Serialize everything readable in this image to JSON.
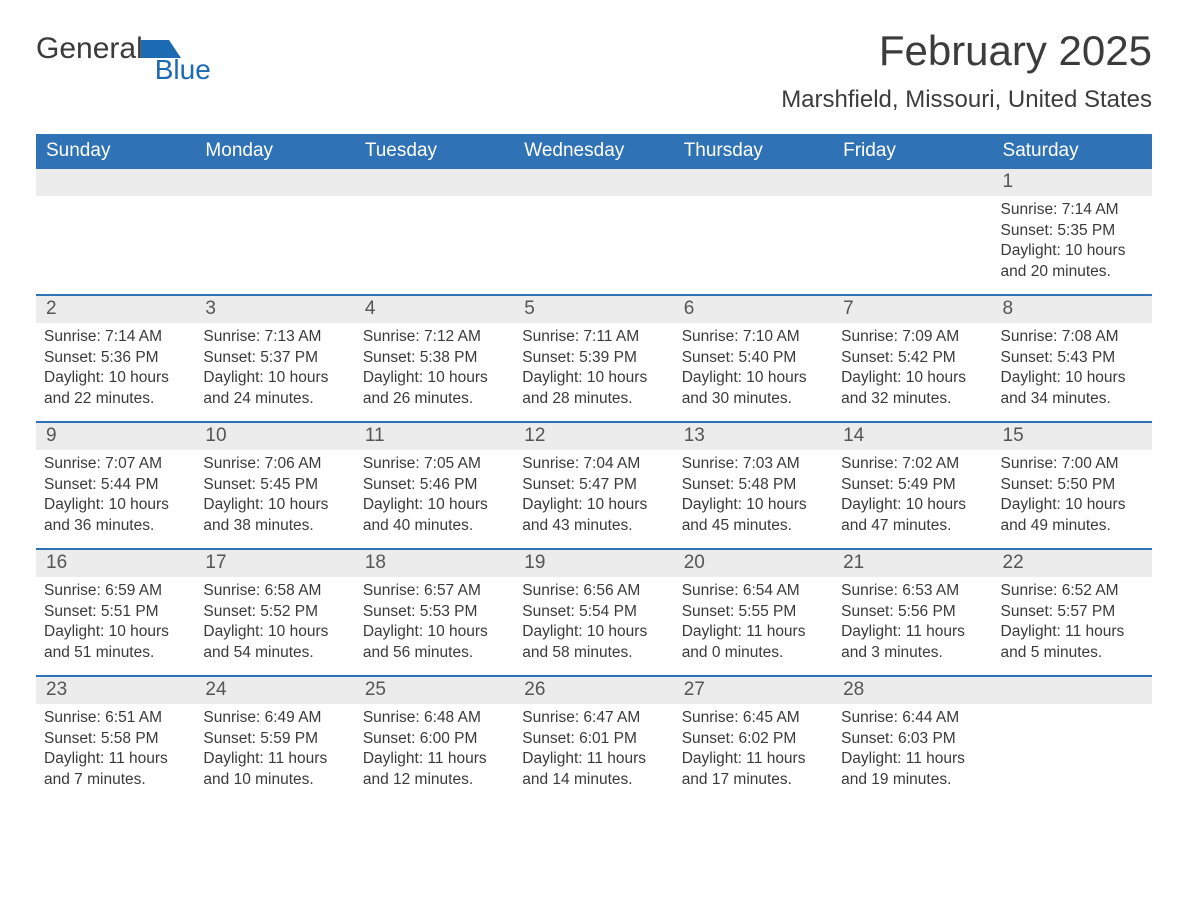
{
  "brand": {
    "word1": "General",
    "word2": "Blue",
    "accent_color": "#1b6ab2"
  },
  "title": "February 2025",
  "location": "Marshfield, Missouri, United States",
  "header_bg": "#2f72b6",
  "header_fg": "#ffffff",
  "strip_bg": "#ececec",
  "week_divider_color": "#2f72b6",
  "text_color": "#3a3a3a",
  "font_family": "Arial",
  "day_headers": [
    "Sunday",
    "Monday",
    "Tuesday",
    "Wednesday",
    "Thursday",
    "Friday",
    "Saturday"
  ],
  "weeks": [
    {
      "days": [
        {
          "n": "",
          "sunrise": "",
          "sunset": "",
          "daylight": ""
        },
        {
          "n": "",
          "sunrise": "",
          "sunset": "",
          "daylight": ""
        },
        {
          "n": "",
          "sunrise": "",
          "sunset": "",
          "daylight": ""
        },
        {
          "n": "",
          "sunrise": "",
          "sunset": "",
          "daylight": ""
        },
        {
          "n": "",
          "sunrise": "",
          "sunset": "",
          "daylight": ""
        },
        {
          "n": "",
          "sunrise": "",
          "sunset": "",
          "daylight": ""
        },
        {
          "n": "1",
          "sunrise": "Sunrise: 7:14 AM",
          "sunset": "Sunset: 5:35 PM",
          "daylight": "Daylight: 10 hours and 20 minutes."
        }
      ]
    },
    {
      "days": [
        {
          "n": "2",
          "sunrise": "Sunrise: 7:14 AM",
          "sunset": "Sunset: 5:36 PM",
          "daylight": "Daylight: 10 hours and 22 minutes."
        },
        {
          "n": "3",
          "sunrise": "Sunrise: 7:13 AM",
          "sunset": "Sunset: 5:37 PM",
          "daylight": "Daylight: 10 hours and 24 minutes."
        },
        {
          "n": "4",
          "sunrise": "Sunrise: 7:12 AM",
          "sunset": "Sunset: 5:38 PM",
          "daylight": "Daylight: 10 hours and 26 minutes."
        },
        {
          "n": "5",
          "sunrise": "Sunrise: 7:11 AM",
          "sunset": "Sunset: 5:39 PM",
          "daylight": "Daylight: 10 hours and 28 minutes."
        },
        {
          "n": "6",
          "sunrise": "Sunrise: 7:10 AM",
          "sunset": "Sunset: 5:40 PM",
          "daylight": "Daylight: 10 hours and 30 minutes."
        },
        {
          "n": "7",
          "sunrise": "Sunrise: 7:09 AM",
          "sunset": "Sunset: 5:42 PM",
          "daylight": "Daylight: 10 hours and 32 minutes."
        },
        {
          "n": "8",
          "sunrise": "Sunrise: 7:08 AM",
          "sunset": "Sunset: 5:43 PM",
          "daylight": "Daylight: 10 hours and 34 minutes."
        }
      ]
    },
    {
      "days": [
        {
          "n": "9",
          "sunrise": "Sunrise: 7:07 AM",
          "sunset": "Sunset: 5:44 PM",
          "daylight": "Daylight: 10 hours and 36 minutes."
        },
        {
          "n": "10",
          "sunrise": "Sunrise: 7:06 AM",
          "sunset": "Sunset: 5:45 PM",
          "daylight": "Daylight: 10 hours and 38 minutes."
        },
        {
          "n": "11",
          "sunrise": "Sunrise: 7:05 AM",
          "sunset": "Sunset: 5:46 PM",
          "daylight": "Daylight: 10 hours and 40 minutes."
        },
        {
          "n": "12",
          "sunrise": "Sunrise: 7:04 AM",
          "sunset": "Sunset: 5:47 PM",
          "daylight": "Daylight: 10 hours and 43 minutes."
        },
        {
          "n": "13",
          "sunrise": "Sunrise: 7:03 AM",
          "sunset": "Sunset: 5:48 PM",
          "daylight": "Daylight: 10 hours and 45 minutes."
        },
        {
          "n": "14",
          "sunrise": "Sunrise: 7:02 AM",
          "sunset": "Sunset: 5:49 PM",
          "daylight": "Daylight: 10 hours and 47 minutes."
        },
        {
          "n": "15",
          "sunrise": "Sunrise: 7:00 AM",
          "sunset": "Sunset: 5:50 PM",
          "daylight": "Daylight: 10 hours and 49 minutes."
        }
      ]
    },
    {
      "days": [
        {
          "n": "16",
          "sunrise": "Sunrise: 6:59 AM",
          "sunset": "Sunset: 5:51 PM",
          "daylight": "Daylight: 10 hours and 51 minutes."
        },
        {
          "n": "17",
          "sunrise": "Sunrise: 6:58 AM",
          "sunset": "Sunset: 5:52 PM",
          "daylight": "Daylight: 10 hours and 54 minutes."
        },
        {
          "n": "18",
          "sunrise": "Sunrise: 6:57 AM",
          "sunset": "Sunset: 5:53 PM",
          "daylight": "Daylight: 10 hours and 56 minutes."
        },
        {
          "n": "19",
          "sunrise": "Sunrise: 6:56 AM",
          "sunset": "Sunset: 5:54 PM",
          "daylight": "Daylight: 10 hours and 58 minutes."
        },
        {
          "n": "20",
          "sunrise": "Sunrise: 6:54 AM",
          "sunset": "Sunset: 5:55 PM",
          "daylight": "Daylight: 11 hours and 0 minutes."
        },
        {
          "n": "21",
          "sunrise": "Sunrise: 6:53 AM",
          "sunset": "Sunset: 5:56 PM",
          "daylight": "Daylight: 11 hours and 3 minutes."
        },
        {
          "n": "22",
          "sunrise": "Sunrise: 6:52 AM",
          "sunset": "Sunset: 5:57 PM",
          "daylight": "Daylight: 11 hours and 5 minutes."
        }
      ]
    },
    {
      "days": [
        {
          "n": "23",
          "sunrise": "Sunrise: 6:51 AM",
          "sunset": "Sunset: 5:58 PM",
          "daylight": "Daylight: 11 hours and 7 minutes."
        },
        {
          "n": "24",
          "sunrise": "Sunrise: 6:49 AM",
          "sunset": "Sunset: 5:59 PM",
          "daylight": "Daylight: 11 hours and 10 minutes."
        },
        {
          "n": "25",
          "sunrise": "Sunrise: 6:48 AM",
          "sunset": "Sunset: 6:00 PM",
          "daylight": "Daylight: 11 hours and 12 minutes."
        },
        {
          "n": "26",
          "sunrise": "Sunrise: 6:47 AM",
          "sunset": "Sunset: 6:01 PM",
          "daylight": "Daylight: 11 hours and 14 minutes."
        },
        {
          "n": "27",
          "sunrise": "Sunrise: 6:45 AM",
          "sunset": "Sunset: 6:02 PM",
          "daylight": "Daylight: 11 hours and 17 minutes."
        },
        {
          "n": "28",
          "sunrise": "Sunrise: 6:44 AM",
          "sunset": "Sunset: 6:03 PM",
          "daylight": "Daylight: 11 hours and 19 minutes."
        },
        {
          "n": "",
          "sunrise": "",
          "sunset": "",
          "daylight": ""
        }
      ]
    }
  ]
}
